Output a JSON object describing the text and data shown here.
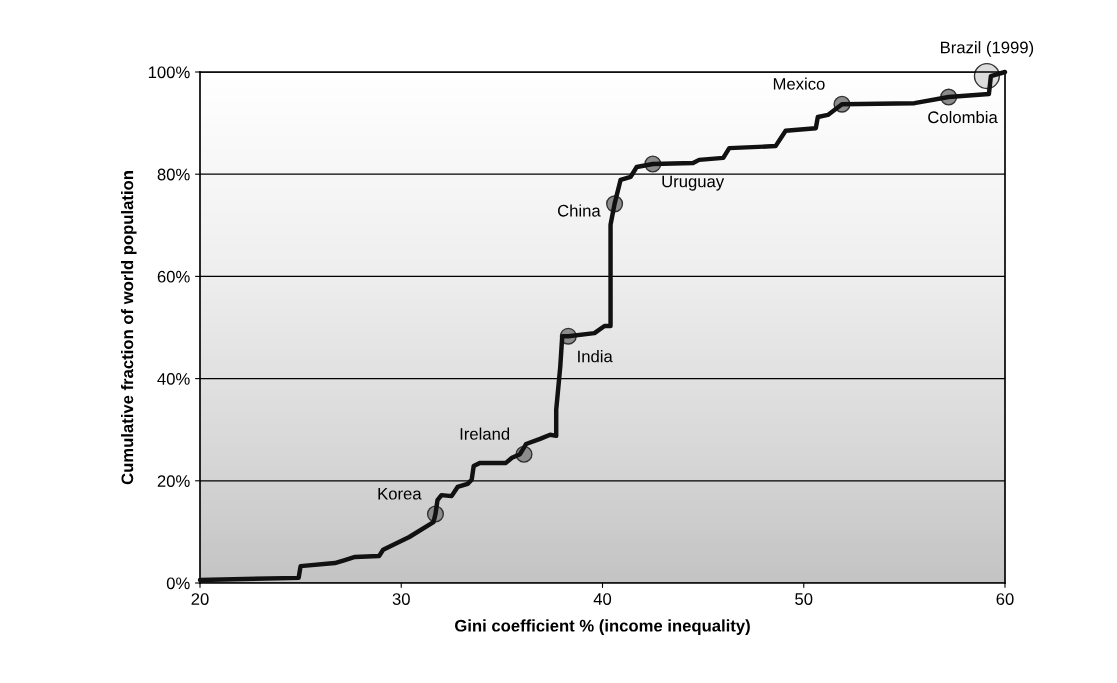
{
  "chart_data": {
    "type": "line",
    "xlabel": "Gini coefficient % (income inequality)",
    "ylabel": "Cumulative fraction of world population",
    "xlim": [
      20,
      60
    ],
    "xticks": [
      20,
      30,
      40,
      50,
      60
    ],
    "ylim": [
      0,
      100
    ],
    "yticks": [
      {
        "value": 0,
        "label": "0%"
      },
      {
        "value": 20,
        "label": "20%"
      },
      {
        "value": 40,
        "label": "40%"
      },
      {
        "value": 60,
        "label": "60%"
      },
      {
        "value": 80,
        "label": "80%"
      },
      {
        "value": 100,
        "label": "100%"
      }
    ],
    "grid": "y",
    "legend": false,
    "series": [
      {
        "color": "#111111",
        "x": [
          20,
          24.9,
          25.0,
          26.7,
          27.2,
          27.7,
          28.9,
          29.1,
          30.4,
          31.6,
          31.7,
          31.8,
          32.0,
          32.5,
          32.8,
          33.3,
          33.5,
          33.6,
          33.9,
          35.2,
          35.5,
          35.9,
          36.2,
          36.9,
          37.4,
          37.7,
          37.7,
          37.9,
          38.0,
          38.3,
          39.6,
          40.1,
          40.4,
          40.4,
          40.6,
          40.9,
          41.4,
          41.7,
          42.5,
          44.5,
          44.8,
          46.0,
          46.3,
          48.6,
          49.1,
          50.6,
          50.7,
          51.2,
          51.9,
          55.5,
          57.2,
          59.2,
          59.3,
          60
        ],
        "values": [
          0.6,
          1.0,
          3.3,
          3.9,
          4.5,
          5.1,
          5.3,
          6.5,
          9.0,
          11.9,
          13.5,
          16.2,
          17.2,
          17.0,
          18.8,
          19.4,
          20.2,
          22.9,
          23.5,
          23.5,
          24.5,
          25.2,
          27.2,
          28.2,
          29.0,
          28.8,
          33.9,
          42.3,
          48.3,
          48.3,
          48.9,
          50.3,
          50.3,
          70.1,
          74.2,
          78.9,
          79.5,
          81.4,
          82.0,
          82.2,
          82.8,
          83.2,
          85.1,
          85.5,
          88.5,
          89.0,
          91.2,
          91.6,
          93.7,
          93.9,
          95.1,
          95.7,
          99.2,
          100
        ]
      },
      {
        "type": "scatter",
        "marker": "circle",
        "x": [
          31.7,
          36.1,
          38.3,
          40.6,
          42.5,
          51.9,
          57.2,
          59.1
        ],
        "values": [
          13.5,
          25.2,
          48.3,
          74.2,
          82.0,
          93.7,
          95.1,
          99.2
        ],
        "sizes": [
          0.4,
          0.4,
          0.4,
          0.4,
          0.4,
          0.4,
          0.4,
          1
        ],
        "colors": [
          "#8c8c8c",
          "#8c8c8c",
          "#8c8c8c",
          "#8c8c8c",
          "#8c8c8c",
          "#8c8c8c",
          "#8c8c8c",
          "#dcdcdc"
        ]
      }
    ],
    "annotations": [
      {
        "text": "Korea",
        "x": 31.7,
        "y": 13.5
      },
      {
        "text": "Ireland",
        "x": 36.1,
        "y": 25.2
      },
      {
        "text": "India",
        "x": 38.3,
        "y": 48.3
      },
      {
        "text": "China",
        "x": 40.6,
        "y": 74.2
      },
      {
        "text": "Uruguay",
        "x": 42.5,
        "y": 82.0
      },
      {
        "text": "Mexico",
        "x": 51.9,
        "y": 93.7
      },
      {
        "text": "Colombia",
        "x": 57.2,
        "y": 95.1
      },
      {
        "text": "Brazil (1999)",
        "x": 59.1,
        "y": 99.2
      }
    ]
  }
}
